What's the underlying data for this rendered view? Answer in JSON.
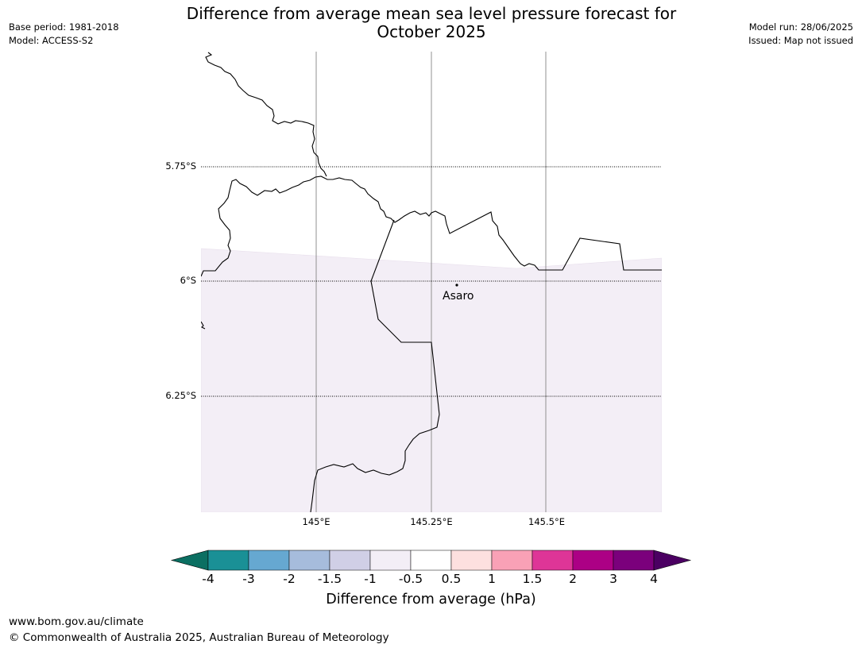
{
  "title": {
    "line1": "Difference from average mean sea level pressure forecast for",
    "line2": "October 2025"
  },
  "meta_left": {
    "base_period": "Base period: 1981-2018",
    "model": "Model: ACCESS-S2"
  },
  "meta_right": {
    "model_run": "Model run: 28/06/2025",
    "issued": "Issued: Map not issued"
  },
  "map": {
    "latitude_labels": [
      "5.75°S",
      "6°S",
      "6.25°S"
    ],
    "longitude_labels": [
      "145°E",
      "145.25°E",
      "145.5°E"
    ],
    "place": "Asaro",
    "shading_category": "-1 to -0.5"
  },
  "colorbar": {
    "title": "Difference from average (hPa)",
    "tick_labels": [
      "-4",
      "-3",
      "-2",
      "-1.5",
      "-1",
      "-0.5",
      "0.5",
      "1",
      "1.5",
      "2",
      "3",
      "4"
    ],
    "low_extend_color": "#0b6f62",
    "high_extend_color": "#4b0062",
    "colors": [
      "#1a9096",
      "#66a8d1",
      "#a6bcdc",
      "#d0cfe6",
      "#f3eef6",
      "#ffffff",
      "#fde0df",
      "#f9a1b6",
      "#de3597",
      "#ac0085",
      "#7b007c"
    ]
  },
  "footer": {
    "url": "www.bom.gov.au/climate",
    "copyright": "© Commonwealth of Australia 2025, Australian Bureau of Meteorology"
  }
}
